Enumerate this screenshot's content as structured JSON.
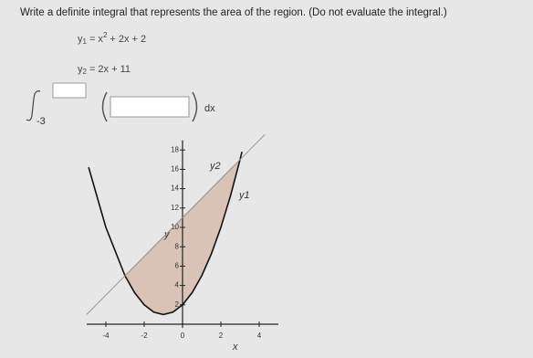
{
  "question": "Write a definite integral that represents the area of the region. (Do not evaluate the integral.)",
  "equations": [
    {
      "var": "y",
      "sub": "1",
      "rhs": "= x",
      "exp": "2",
      "rest": "+ 2x + 2"
    },
    {
      "var": "y",
      "sub": "2",
      "rhs": "= 2x + 11"
    }
  ],
  "integral": {
    "lower": "-3",
    "differential": "dx"
  },
  "chart_data": {
    "type": "line",
    "xlabel": "x",
    "ylabel": "y",
    "xlim": [
      -5,
      5
    ],
    "ylim": [
      0,
      19
    ],
    "xticks": [
      -4,
      -2,
      0,
      2,
      4
    ],
    "yticks": [
      2,
      4,
      6,
      8,
      10,
      12,
      14,
      16,
      18
    ],
    "shade_color": "#d9c2b6",
    "series": [
      {
        "name": "y1",
        "color": "#111111",
        "x": [
          -4.9,
          -4,
          -3,
          -2.5,
          -2,
          -1.5,
          -1,
          -0.5,
          0,
          0.5,
          1,
          1.5,
          2,
          2.5,
          3,
          3.1
        ],
        "values": [
          16.21,
          10,
          5,
          3.25,
          2,
          1.25,
          1,
          1.25,
          2,
          3.25,
          5,
          7.25,
          10,
          13.25,
          17,
          17.81
        ]
      },
      {
        "name": "y2",
        "color": "#999999",
        "x": [
          -5,
          -3,
          3,
          4.3
        ],
        "values": [
          1,
          5,
          17,
          19.6
        ]
      }
    ]
  }
}
